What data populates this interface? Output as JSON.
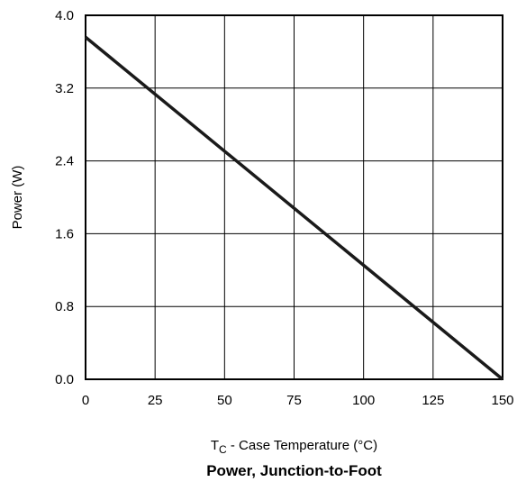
{
  "chart_data": {
    "type": "line",
    "title": "Power, Junction-to-Foot",
    "xlabel": {
      "main": "T",
      "sub": "C",
      "rest": " - Case Temperature (°C)"
    },
    "ylabel": "Power (W)",
    "xlim": [
      0,
      150
    ],
    "ylim": [
      0,
      4.0
    ],
    "xticks": [
      "0",
      "25",
      "50",
      "75",
      "100",
      "125",
      "150"
    ],
    "yticks": [
      "0.0",
      "0.8",
      "1.6",
      "2.4",
      "3.2",
      "4.0"
    ],
    "grid": true,
    "legend": "none",
    "series": [
      {
        "x": [
          0,
          150
        ],
        "y": [
          3.76,
          0.0
        ]
      }
    ]
  }
}
